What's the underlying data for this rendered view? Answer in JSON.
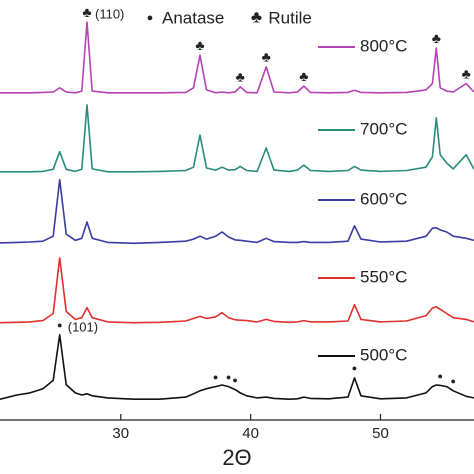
{
  "chart_data": {
    "type": "line",
    "x_label": "2Θ",
    "x": [
      20.7,
      22,
      23,
      24,
      24.8,
      25.3,
      25.8,
      26.5,
      27,
      27.4,
      27.8,
      29,
      31,
      33,
      35,
      35.6,
      36.1,
      36.6,
      37.3,
      37.8,
      38.3,
      38.8,
      39.2,
      39.7,
      40.5,
      41.2,
      41.8,
      43,
      43.6,
      44.1,
      44.6,
      46,
      47.5,
      48.0,
      48.5,
      50,
      52,
      53.5,
      54.0,
      54.3,
      54.6,
      55.1,
      55.6,
      56.6,
      57.2
    ],
    "xlim": [
      20.7,
      57.2
    ],
    "xticks": [
      30,
      40,
      50
    ],
    "ylim": [
      0,
      100
    ],
    "phase_legend": [
      {
        "symbol": "●",
        "name": "Anatase"
      },
      {
        "symbol": "♣",
        "name": "Rutile"
      }
    ],
    "series": [
      {
        "name": "800°C",
        "color": "#b542b5",
        "values": [
          77.8,
          77.8,
          77.8,
          77.9,
          78,
          79,
          78,
          77.8,
          78.2,
          94.7,
          78.2,
          77.8,
          77.8,
          77.8,
          77.9,
          79,
          86.8,
          78.5,
          77.8,
          78,
          77.8,
          78,
          79.2,
          77.9,
          77.8,
          84,
          78,
          77.8,
          78,
          79.4,
          77.9,
          77.8,
          77.9,
          78.4,
          77.9,
          77.8,
          77.9,
          78.5,
          80,
          88.5,
          79,
          78.2,
          78,
          80,
          78
        ],
        "markers": [
          {
            "x": 27.4,
            "symbol": "♣",
            "label": "(110)"
          },
          {
            "x": 36.1,
            "symbol": "♣"
          },
          {
            "x": 39.2,
            "symbol": "♣"
          },
          {
            "x": 41.2,
            "symbol": "♣"
          },
          {
            "x": 44.1,
            "symbol": "♣"
          },
          {
            "x": 54.3,
            "symbol": "♣"
          },
          {
            "x": 56.6,
            "symbol": "♣"
          }
        ]
      },
      {
        "name": "700°C",
        "color": "#2a8a7c",
        "values": [
          58.9,
          58.9,
          58.9,
          59,
          59.5,
          63.7,
          59.5,
          59,
          59.5,
          74.9,
          59.6,
          58.9,
          58.9,
          59,
          59.2,
          60,
          67.7,
          59.8,
          59.3,
          60,
          59.3,
          59.4,
          60.2,
          59.2,
          59,
          64.6,
          59.3,
          59,
          59.3,
          60.5,
          59.2,
          59,
          59.2,
          60.2,
          59.3,
          59,
          59.2,
          60,
          62.5,
          71.8,
          63,
          61,
          59.6,
          63,
          59.5
        ]
      },
      {
        "name": "600°C",
        "color": "#3b3ba3",
        "values": [
          41.9,
          42,
          42.1,
          42.3,
          43.5,
          57,
          44,
          42.5,
          43,
          46.9,
          43,
          42,
          41.8,
          42,
          42.3,
          42.8,
          43.5,
          42.8,
          43.5,
          44.5,
          43.3,
          42.6,
          42.5,
          42.3,
          42,
          43,
          42.2,
          42,
          42,
          42.2,
          42,
          42,
          42.3,
          46,
          42.8,
          42.1,
          42.3,
          43.5,
          45.4,
          45.5,
          45,
          44.5,
          43.5,
          43,
          42.5
        ]
      },
      {
        "name": "550°C",
        "color": "#e0302c",
        "values": [
          22.8,
          22.9,
          23,
          23.3,
          25,
          38.3,
          25.5,
          23.6,
          24,
          26.4,
          24,
          23,
          22.8,
          22.9,
          23.2,
          23.8,
          24.3,
          23.8,
          24.2,
          25.2,
          24,
          23.5,
          23.4,
          23.3,
          23,
          23.6,
          23.1,
          22.9,
          23,
          23.3,
          23,
          23,
          23.2,
          27.1,
          23.6,
          23,
          23.2,
          24.5,
          26.3,
          26.6,
          26,
          25,
          24,
          23.6,
          23
        ]
      },
      {
        "name": "500°C",
        "color": "#111111",
        "values": [
          4.5,
          5.5,
          6,
          7,
          9,
          19.9,
          8,
          6,
          5.5,
          5.8,
          5.3,
          4.8,
          4.5,
          4.5,
          5,
          5.8,
          6.5,
          7,
          7.5,
          7.9,
          7.5,
          6.8,
          6,
          5.3,
          4.8,
          5,
          4.7,
          4.5,
          4.6,
          5,
          4.7,
          4.6,
          5,
          9.6,
          5.3,
          4.6,
          4.8,
          6,
          7.5,
          7.9,
          7.8,
          7.5,
          6.5,
          5.2,
          4.8
        ],
        "markers": [
          {
            "x": 25.3,
            "symbol": "●",
            "label": "(101)"
          },
          {
            "x": 37.3,
            "symbol": "●"
          },
          {
            "x": 38.3,
            "symbol": "●"
          },
          {
            "x": 38.8,
            "symbol": "●"
          },
          {
            "x": 48.0,
            "symbol": "●"
          },
          {
            "x": 54.6,
            "symbol": "●"
          },
          {
            "x": 55.6,
            "symbol": "●"
          }
        ]
      }
    ]
  }
}
